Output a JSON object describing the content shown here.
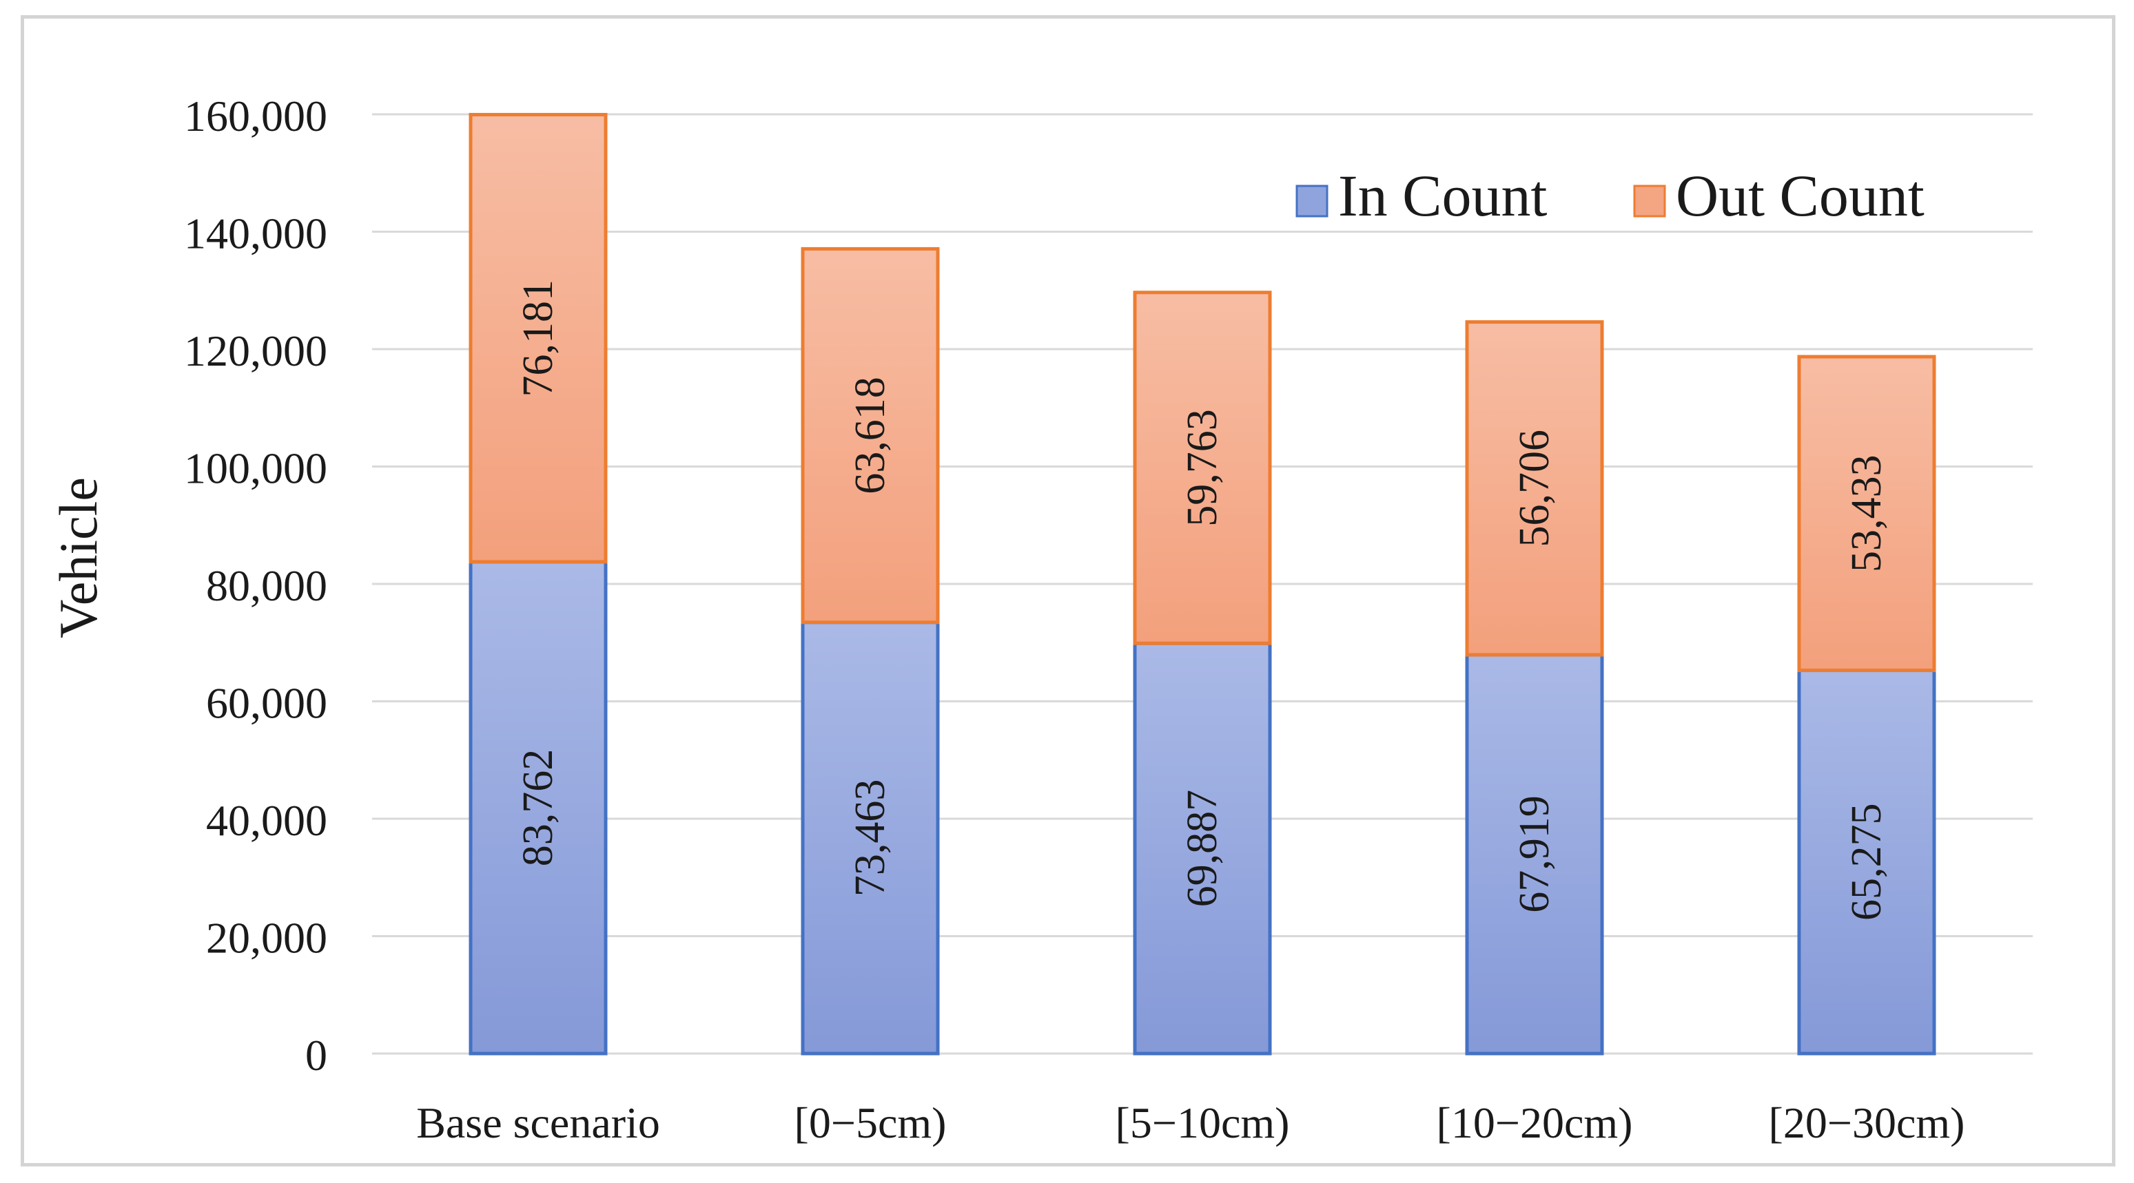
{
  "chart_data": {
    "type": "bar",
    "stacked": true,
    "title": "",
    "xlabel": "",
    "ylabel": "Vehicle",
    "ylim": [
      0,
      160000
    ],
    "yticks": [
      0,
      20000,
      40000,
      60000,
      80000,
      100000,
      120000,
      140000,
      160000
    ],
    "ytick_labels": [
      "0",
      "20,000",
      "40,000",
      "60,000",
      "80,000",
      "100,000",
      "120,000",
      "140,000",
      "160,000"
    ],
    "grid": true,
    "legend_position": "top-right",
    "categories": [
      "Base scenario",
      "[0−5cm)",
      "[5−10cm)",
      "[10−20cm)",
      "[20−30cm)"
    ],
    "series": [
      {
        "name": "In Count",
        "color": "#8fa4dc",
        "border_color": "#4472c4",
        "values": [
          83762,
          73463,
          69887,
          67919,
          65275
        ],
        "labels": [
          "83,762",
          "73,463",
          "69,887",
          "67,919",
          "65,275"
        ]
      },
      {
        "name": "Out Count",
        "color": "#f4a582",
        "border_color": "#ed7d31",
        "values": [
          76181,
          63618,
          59763,
          56706,
          53433
        ],
        "labels": [
          "76,181",
          "63,618",
          "59,763",
          "56,706",
          "53,433"
        ]
      }
    ]
  }
}
